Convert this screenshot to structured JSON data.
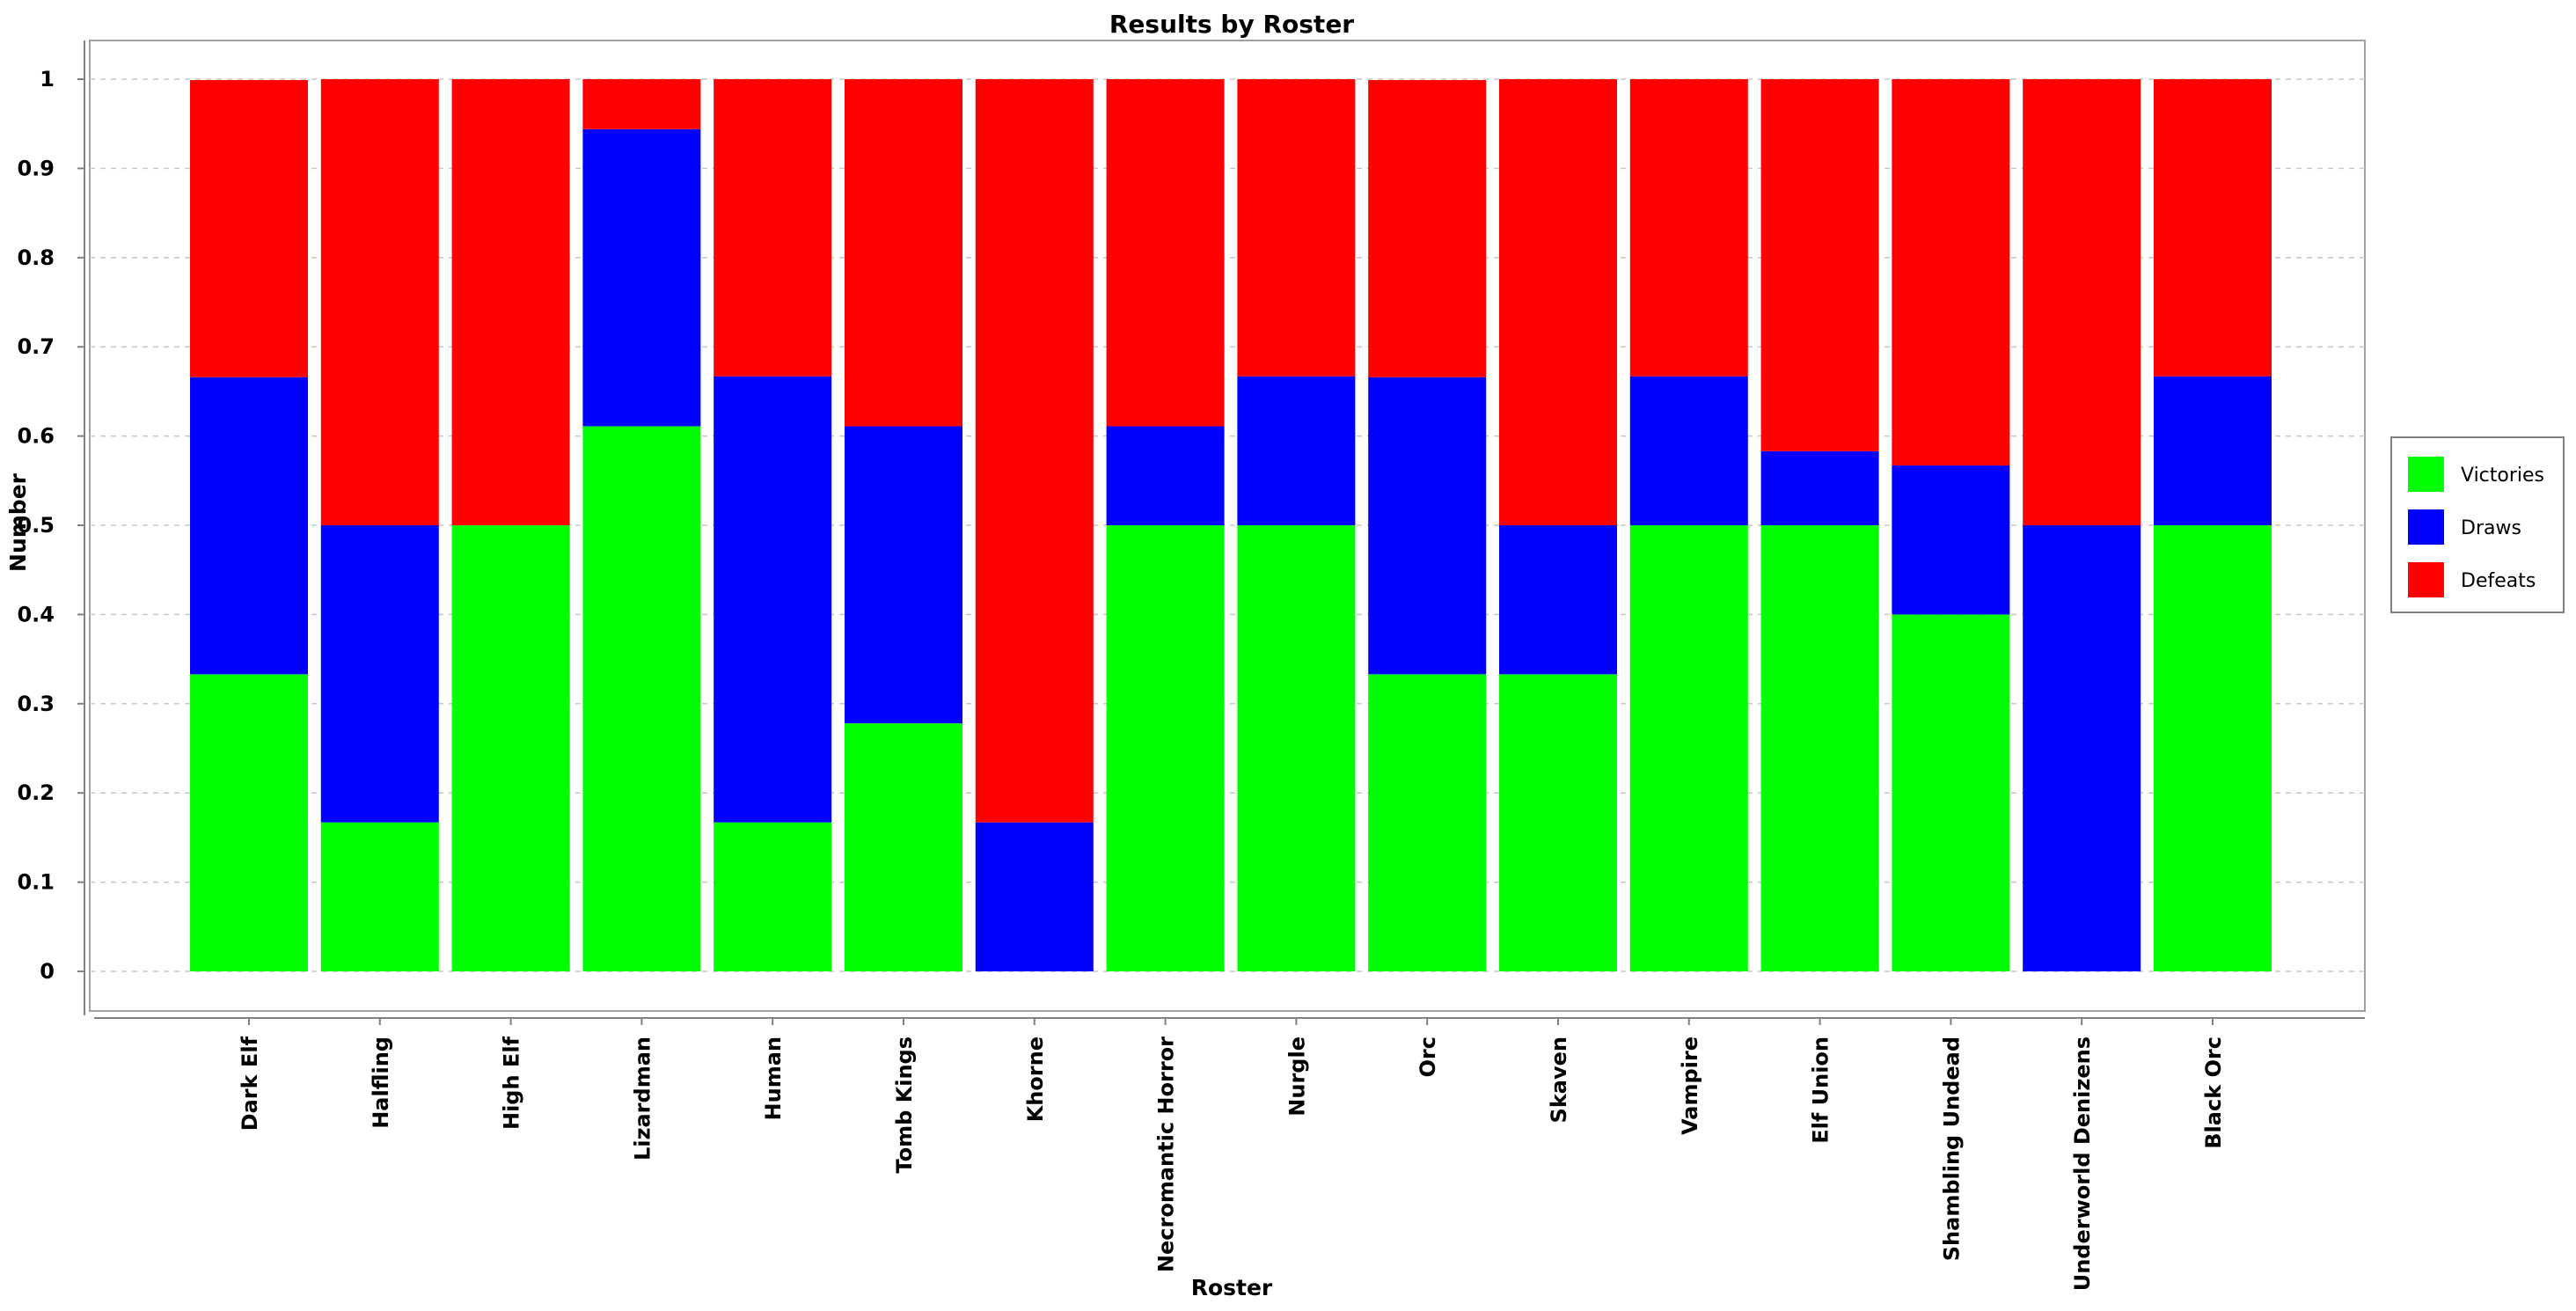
{
  "chart_data": {
    "type": "bar",
    "stacked": true,
    "title": "Results by Roster",
    "xlabel": "Roster",
    "ylabel": "Number",
    "ylim": [
      0,
      1
    ],
    "yticks": [
      "0",
      "0.1",
      "0.2",
      "0.3",
      "0.4",
      "0.5",
      "0.6",
      "0.7",
      "0.8",
      "0.9",
      "1"
    ],
    "grid": true,
    "legend_position": "right",
    "categories": [
      "Dark Elf",
      "Halfling",
      "High Elf",
      "Lizardman",
      "Human",
      "Tomb Kings",
      "Khorne",
      "Necromantic Horror",
      "Nurgle",
      "Orc",
      "Skaven",
      "Vampire",
      "Elf Union",
      "Shambling Undead",
      "Underworld Denizens",
      "Black Orc"
    ],
    "series": [
      {
        "name": "Victories",
        "color": "#00ff00",
        "values": [
          0.333,
          0.167,
          0.5,
          0.611,
          0.167,
          0.278,
          0,
          0.5,
          0.5,
          0.333,
          0.333,
          0.5,
          0.5,
          0.4,
          0,
          0.5
        ]
      },
      {
        "name": "Draws",
        "color": "#0000ff",
        "values": [
          0.333,
          0.333,
          0,
          0.333,
          0.5,
          0.333,
          0.167,
          0.111,
          0.167,
          0.333,
          0.167,
          0.167,
          0.083,
          0.167,
          0.5,
          0.167
        ]
      },
      {
        "name": "Defeats",
        "color": "#ff0000",
        "values": [
          0.333,
          0.5,
          0.5,
          0.056,
          0.333,
          0.389,
          0.833,
          0.389,
          0.333,
          0.333,
          0.5,
          0.333,
          0.417,
          0.433,
          0.5,
          0.333
        ]
      }
    ]
  }
}
